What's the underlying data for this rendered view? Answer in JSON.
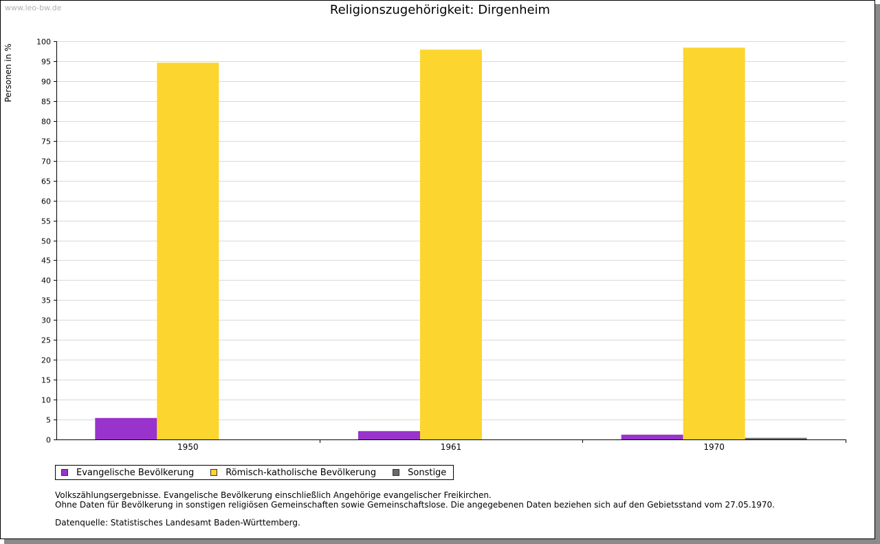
{
  "watermark": "www.leo-bw.de",
  "chart_data": {
    "type": "bar",
    "title": "Religionszugehörigkeit: Dirgenheim",
    "xlabel": "",
    "ylabel": "Personen in %",
    "ylim": [
      0,
      100
    ],
    "yticks": [
      0,
      5,
      10,
      15,
      20,
      25,
      30,
      35,
      40,
      45,
      50,
      55,
      60,
      65,
      70,
      75,
      80,
      85,
      90,
      95,
      100
    ],
    "grid": true,
    "categories": [
      "1950",
      "1961",
      "1970"
    ],
    "series": [
      {
        "name": "Evangelische Bevölkerung",
        "color": "#9933cc",
        "values": [
          5.4,
          2.1,
          1.2
        ]
      },
      {
        "name": "Römisch-katholische Bevölkerung",
        "color": "#fcd52f",
        "values": [
          94.6,
          97.9,
          98.4
        ]
      },
      {
        "name": "Sonstige",
        "color": "#6b6b6b",
        "values": [
          0.0,
          0.0,
          0.4
        ]
      }
    ],
    "legend_position": "bottom-left"
  },
  "notes": {
    "line1": "Volkszählungsergebnisse. Evangelische Bevölkerung einschließlich Angehörige evangelischer Freikirchen.",
    "line2": "Ohne Daten für Bevölkerung in sonstigen religiösen Gemeinschaften sowie Gemeinschaftslose. Die angegebenen Daten beziehen sich auf den Gebietsstand vom 27.05.1970.",
    "source": "Datenquelle: Statistisches Landesamt Baden-Württemberg."
  }
}
